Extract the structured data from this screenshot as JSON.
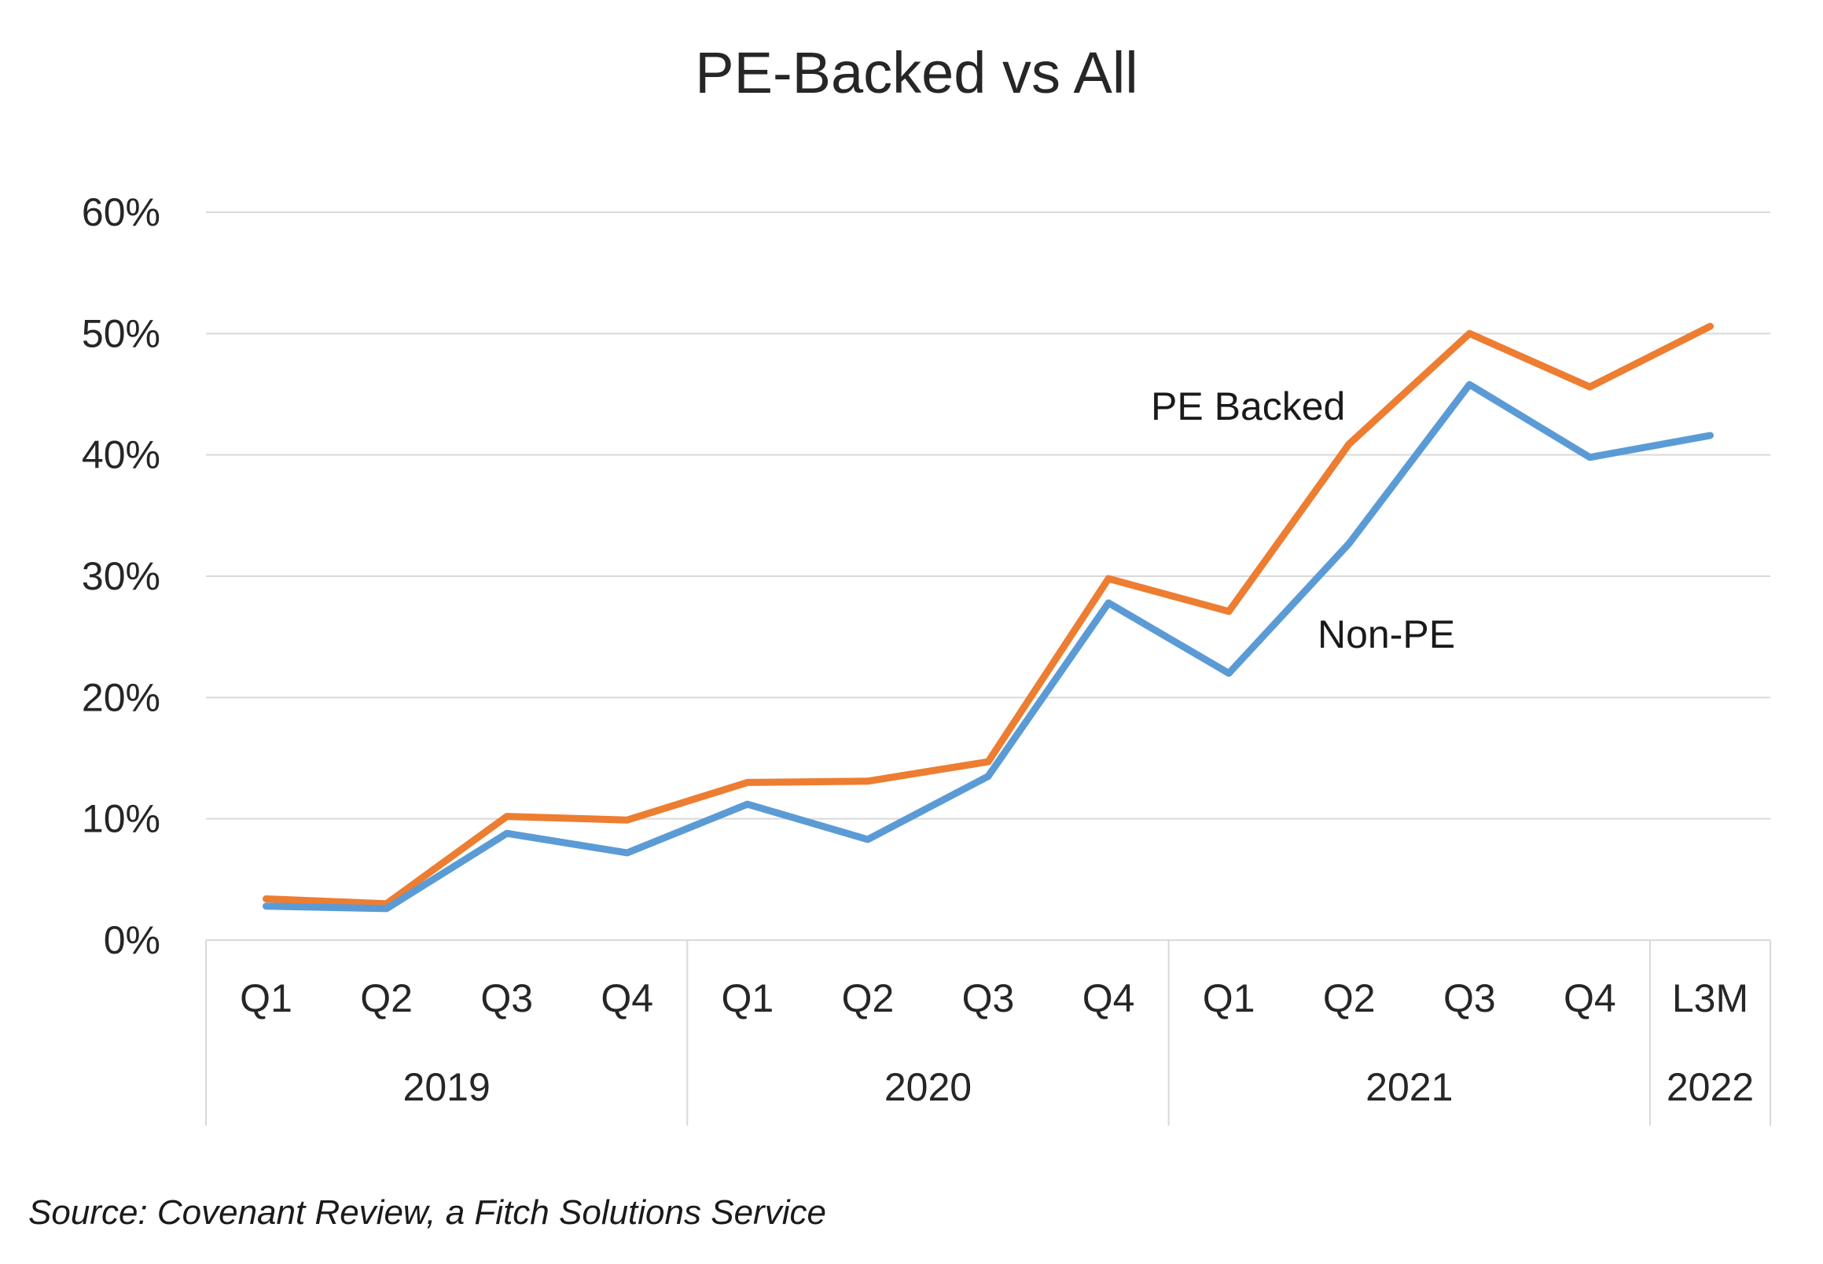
{
  "chart_data": {
    "type": "line",
    "title": "PE-Backed vs All",
    "xlabel": "",
    "ylabel": "",
    "yticks": [
      "0%",
      "10%",
      "20%",
      "30%",
      "40%",
      "50%",
      "60%"
    ],
    "ylim": [
      0,
      60
    ],
    "grid": true,
    "categories": [
      "Q1",
      "Q2",
      "Q3",
      "Q4",
      "Q1",
      "Q2",
      "Q3",
      "Q4",
      "Q1",
      "Q2",
      "Q3",
      "Q4",
      "L3M"
    ],
    "groups": [
      {
        "label": "2019",
        "count": 4
      },
      {
        "label": "2020",
        "count": 4
      },
      {
        "label": "2021",
        "count": 4
      },
      {
        "label": "2022",
        "count": 1
      }
    ],
    "series": [
      {
        "name": "PE Backed",
        "color": "#ED7D31",
        "values": [
          3.4,
          3.0,
          10.2,
          9.9,
          13.0,
          13.1,
          14.7,
          29.8,
          27.1,
          40.9,
          50.0,
          45.6,
          50.6
        ]
      },
      {
        "name": "Non-PE",
        "color": "#5B9BD5",
        "values": [
          2.8,
          2.6,
          8.8,
          7.2,
          11.2,
          8.3,
          13.5,
          27.8,
          22.0,
          32.7,
          45.8,
          39.8,
          41.6
        ]
      }
    ]
  },
  "source": "Source: Covenant Review, a Fitch Solutions Service"
}
